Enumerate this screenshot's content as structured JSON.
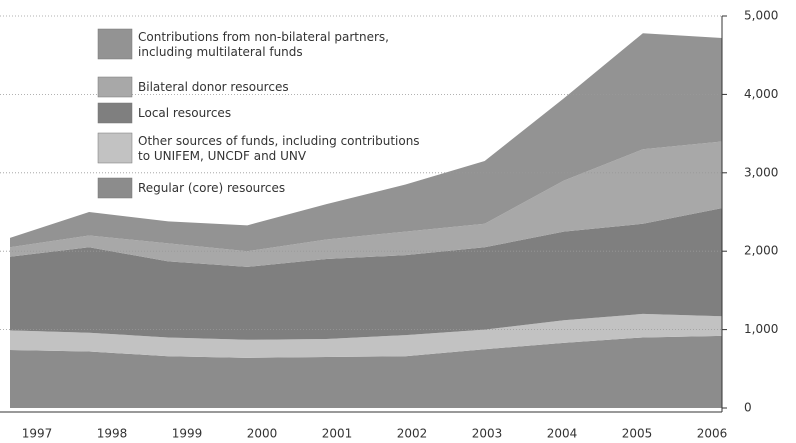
{
  "chart_data": {
    "type": "stacked_area",
    "categories": [
      "1997",
      "1998",
      "1999",
      "2000",
      "2001",
      "2002",
      "2003",
      "2004",
      "2005",
      "2006"
    ],
    "series": [
      {
        "name": "Contributions from non-bilateral partners,\nincluding multilateral funds",
        "color": "#939393",
        "values": [
          120,
          300,
          280,
          330,
          450,
          600,
          800,
          1050,
          1480,
          1320
        ]
      },
      {
        "name": "Bilateral donor resources",
        "color": "#a8a8a8",
        "values": [
          120,
          150,
          230,
          200,
          250,
          300,
          300,
          650,
          950,
          850
        ]
      },
      {
        "name": "Local resources",
        "color": "#7f7f7f",
        "values": [
          940,
          1090,
          970,
          930,
          1020,
          1020,
          1050,
          1130,
          1150,
          1380
        ]
      },
      {
        "name": "Other sources of funds, including contributions\nto UNIFEM, UNCDF and UNV",
        "color": "#c2c2c2",
        "values": [
          250,
          240,
          240,
          230,
          230,
          270,
          250,
          290,
          300,
          250
        ]
      },
      {
        "name": "Regular (core) resources",
        "color": "#8c8c8c",
        "values": [
          740,
          720,
          660,
          640,
          650,
          660,
          750,
          830,
          900,
          920
        ]
      }
    ],
    "ylim": [
      0,
      5000
    ],
    "yticks": [
      0,
      {
        "value": 1000,
        "label": "1,000"
      },
      {
        "value": 2000,
        "label": "2,000"
      },
      {
        "value": 3000,
        "label": "3,000"
      },
      {
        "value": 4000,
        "label": "4,000"
      },
      {
        "value": 5000,
        "label": "5,000"
      }
    ],
    "grid": true
  }
}
